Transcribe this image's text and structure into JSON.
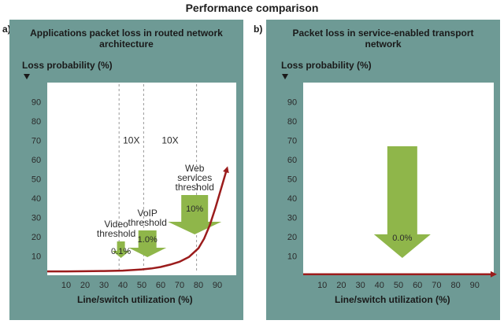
{
  "figure": {
    "title": "Performance comparison",
    "panel_a_letter": "a)",
    "panel_b_letter": "b)"
  },
  "colors": {
    "panel_bg": "#6e9a95",
    "plot_bg": "#ffffff",
    "curve": "#9b1c1c",
    "threshold_arrow": "#8fb64a",
    "grid_line": "#9a9a9a",
    "text": "#1a1a1a"
  },
  "chart_data": [
    {
      "type": "line",
      "title": "Applications packet loss in routed network architecture",
      "xlabel": "Line/switch utilization (%)",
      "ylabel": "Loss probability (%)",
      "xlim": [
        0,
        100
      ],
      "ylim": [
        0,
        100
      ],
      "x_ticks": [
        "10",
        "20",
        "30",
        "40",
        "50",
        "60",
        "70",
        "80",
        "90"
      ],
      "y_ticks": [
        "10",
        "20",
        "30",
        "40",
        "50",
        "60",
        "70",
        "80",
        "90"
      ],
      "grid": false,
      "series": [
        {
          "x": [
            0,
            10,
            20,
            30,
            40,
            45,
            50,
            55,
            60,
            65,
            70,
            75,
            80,
            83,
            86,
            89,
            92,
            95
          ],
          "y": [
            2,
            2,
            2.1,
            2.2,
            2.4,
            2.7,
            3,
            3.5,
            4.3,
            5.5,
            7,
            9.5,
            14,
            19,
            26,
            35,
            45,
            55
          ]
        }
      ],
      "vlines": [
        38,
        51,
        79
      ],
      "ratio_labels": [
        "10X",
        "10X"
      ],
      "ratio_label_x": [
        44.5,
        65
      ],
      "ratio_label_y": 70,
      "thresholds": [
        {
          "label": "Video threshold",
          "value_label": "0.1%",
          "x": 39,
          "value": 0.1
        },
        {
          "label": "VoIP threshold",
          "value_label": "1.0%",
          "x": 53,
          "value": 1.0
        },
        {
          "label": "Web services threshold",
          "value_label": "10%",
          "x": 78,
          "value": 10
        }
      ]
    },
    {
      "type": "line",
      "title": "Packet loss in service-enabled transport network",
      "xlabel": "Line/switch utilization (%)",
      "ylabel": "Loss probability (%)",
      "xlim": [
        0,
        100
      ],
      "ylim": [
        0,
        100
      ],
      "x_ticks": [
        "10",
        "20",
        "30",
        "40",
        "50",
        "60",
        "70",
        "80",
        "90"
      ],
      "y_ticks": [
        "10",
        "20",
        "30",
        "40",
        "50",
        "60",
        "70",
        "80",
        "90"
      ],
      "grid": false,
      "series": [
        {
          "x": [
            0,
            100
          ],
          "y": [
            0.5,
            0.5
          ]
        }
      ],
      "thresholds": [
        {
          "label": "",
          "value_label": "0.0%",
          "x": 52,
          "value": 0.0
        }
      ]
    }
  ]
}
